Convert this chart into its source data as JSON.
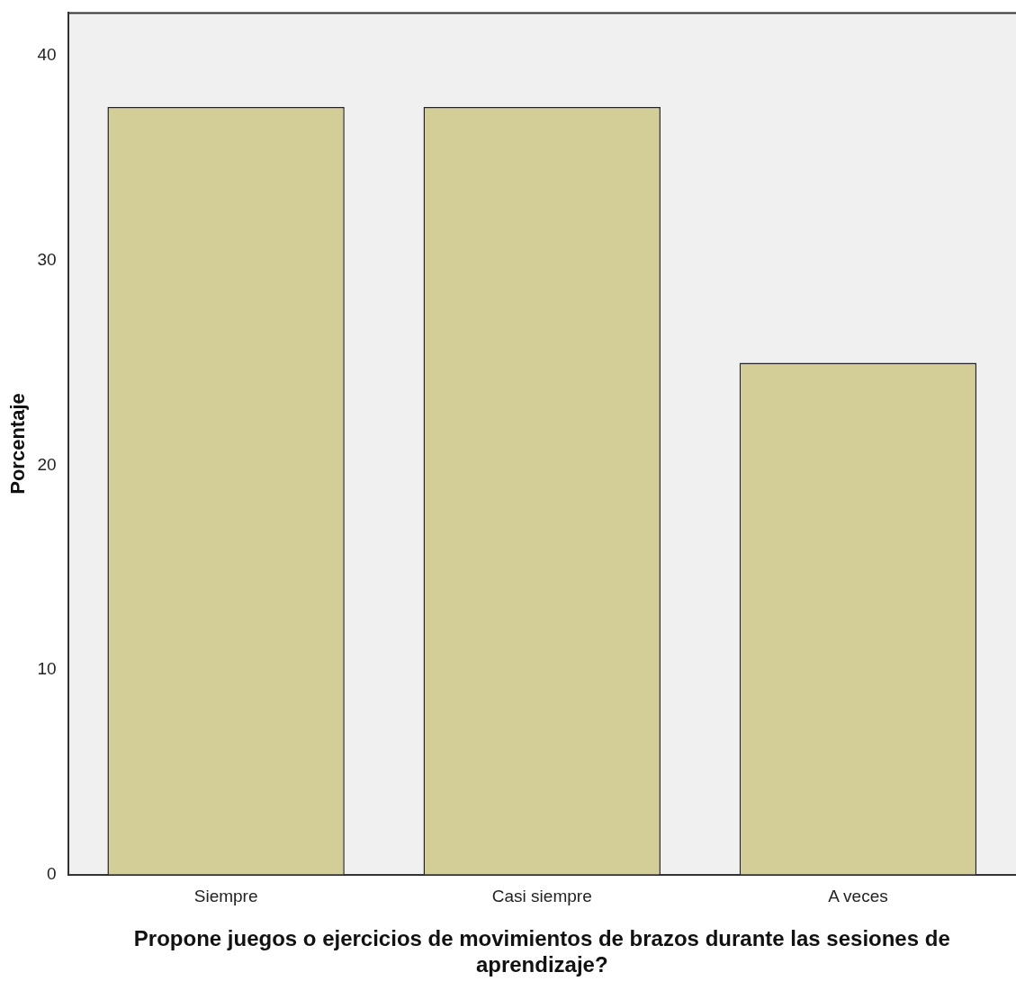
{
  "chart_data": {
    "type": "bar",
    "xlabel": "Propone juegos o ejercicios de movimientos de brazos durante las sesiones de aprendizaje?",
    "ylabel": "Porcentaje",
    "categories": [
      "Siempre",
      "Casi siempre",
      "A veces"
    ],
    "values": [
      37.5,
      37.5,
      25
    ],
    "color": "#d3ce97",
    "ylim": [
      0,
      42.1
    ],
    "yticks": [
      0,
      10,
      20,
      30,
      40
    ],
    "grid": false,
    "legend": false
  }
}
